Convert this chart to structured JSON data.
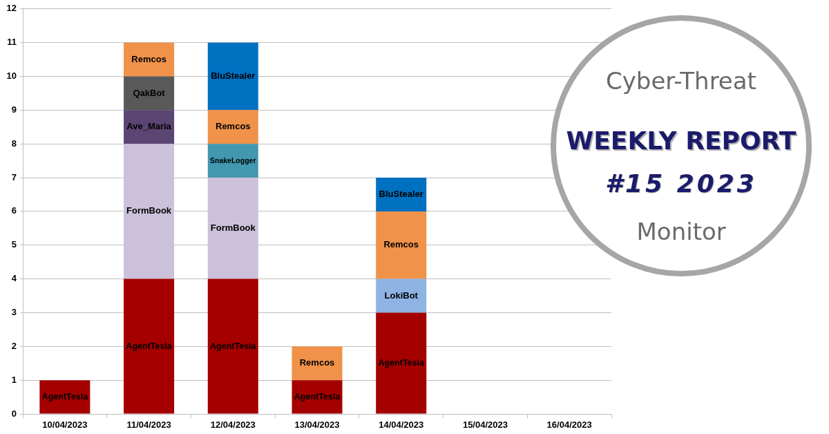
{
  "chart_data": {
    "type": "bar",
    "title": "WEEKLY REPORT",
    "subtitle": "#15 2023",
    "annotations": [
      "Cyber-Threat",
      "Monitor"
    ],
    "categories": [
      "10/04/2023",
      "11/04/2023",
      "12/04/2023",
      "13/04/2023",
      "14/04/2023",
      "15/04/2023",
      "16/04/2023"
    ],
    "series": [
      {
        "name": "AgentTesla",
        "color": "#a50000",
        "values": [
          1,
          4,
          4,
          1,
          3,
          null,
          null
        ]
      },
      {
        "name": "FormBook",
        "color": "#ccc1da",
        "values": [
          null,
          4,
          3,
          null,
          null,
          null,
          null
        ]
      },
      {
        "name": "LokiBot",
        "color": "#8eb4e3",
        "values": [
          null,
          null,
          null,
          null,
          1,
          null,
          null
        ]
      },
      {
        "name": "Ave_Maria",
        "color": "#5b4573",
        "values": [
          null,
          1,
          null,
          null,
          null,
          null,
          null
        ]
      },
      {
        "name": "QakBot",
        "color": "#595959",
        "values": [
          null,
          1,
          null,
          null,
          null,
          null,
          null
        ]
      },
      {
        "name": "SnakeLogger",
        "color": "#4198af",
        "values": [
          null,
          null,
          1,
          null,
          null,
          null,
          null
        ]
      },
      {
        "name": "Remcos",
        "color": "#f0924a",
        "values": [
          null,
          1,
          1,
          1,
          2,
          null,
          null
        ]
      },
      {
        "name": "BluStealer",
        "color": "#0070c0",
        "values": [
          null,
          null,
          2,
          null,
          1,
          null,
          null
        ]
      }
    ],
    "stacked": true,
    "ylim": [
      0,
      12
    ],
    "yticks": [
      0,
      1,
      2,
      3,
      4,
      5,
      6,
      7,
      8,
      9,
      10,
      11,
      12
    ],
    "grid": "y"
  }
}
